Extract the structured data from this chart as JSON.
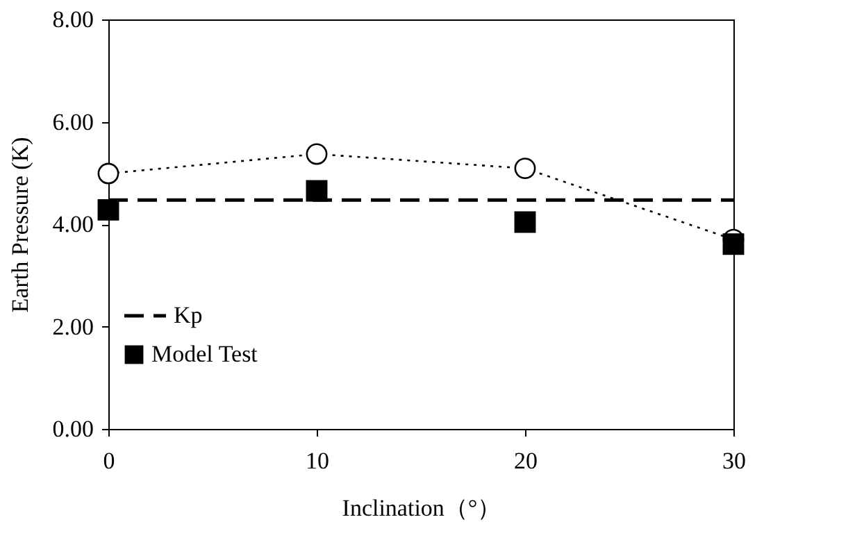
{
  "chart_data": {
    "type": "scatter",
    "xlabel": "Inclination（°）",
    "ylabel": "Earth Pressure (K)",
    "x": [
      0,
      10,
      20,
      30
    ],
    "series": [
      {
        "name": "Model Test",
        "type": "scatter",
        "marker": "square",
        "color": "#000000",
        "values": [
          4.28,
          4.65,
          4.04,
          3.61
        ]
      },
      {
        "type": "line",
        "marker": "circle",
        "line_style": "dotted",
        "color": "#000000",
        "values": [
          4.99,
          5.37,
          5.09,
          3.7
        ]
      },
      {
        "name": "Kp",
        "type": "line",
        "marker": "none",
        "line_style": "dashed",
        "color": "#000000",
        "values": [
          4.47,
          4.47,
          4.47,
          4.47
        ]
      }
    ],
    "xlim": [
      0,
      30
    ],
    "xticks": [
      0,
      10,
      20,
      30
    ],
    "ylim": [
      0,
      8
    ],
    "yticks": [
      {
        "value": 0,
        "label": "0.00"
      },
      {
        "value": 2,
        "label": "2.00"
      },
      {
        "value": 4,
        "label": "4.00"
      },
      {
        "value": 6,
        "label": "6.00"
      },
      {
        "value": 8,
        "label": "8.00"
      }
    ],
    "grid": false,
    "legend": "bottom left"
  }
}
